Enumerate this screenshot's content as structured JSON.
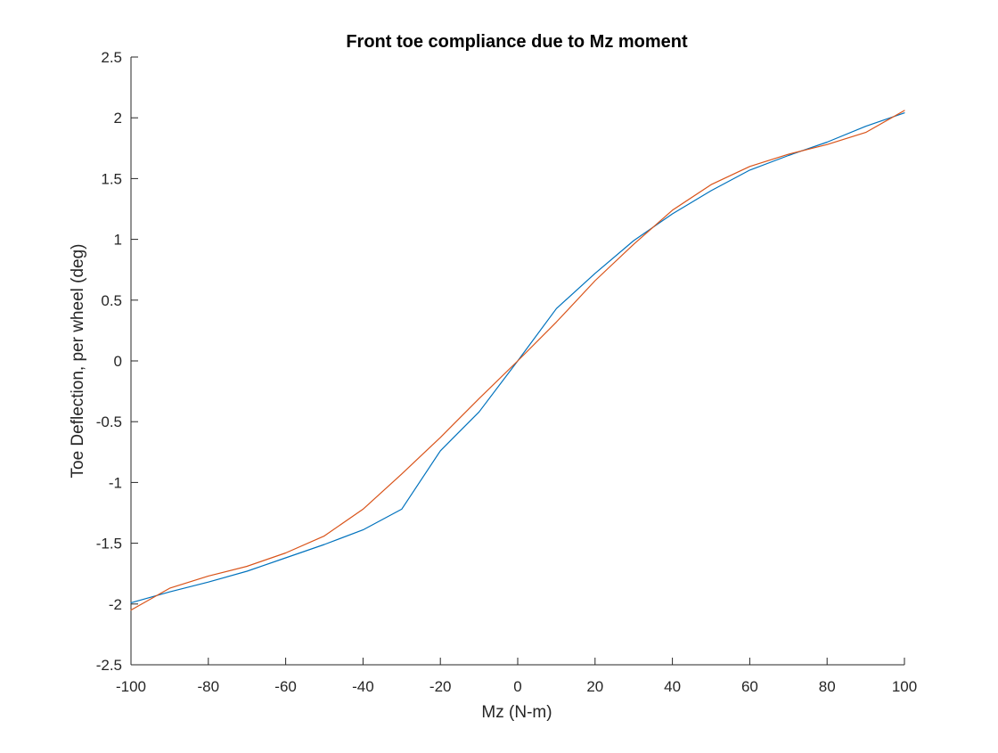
{
  "chart_data": {
    "type": "line",
    "title": "Front toe compliance due to Mz moment",
    "xlabel": "Mz (N-m)",
    "ylabel": "Toe Deflection, per wheel (deg)",
    "xlim": [
      -100,
      100
    ],
    "ylim": [
      -2.5,
      2.5
    ],
    "xticks": [
      -100,
      -80,
      -60,
      -40,
      -20,
      0,
      20,
      40,
      60,
      80,
      100
    ],
    "yticks": [
      -2.5,
      -2,
      -1.5,
      -1,
      -0.5,
      0,
      0.5,
      1,
      1.5,
      2,
      2.5
    ],
    "grid": false,
    "legend": "none",
    "series": [
      {
        "color": "#0072BD",
        "x": [
          -100,
          -90,
          -80,
          -70,
          -60,
          -50,
          -40,
          -30,
          -20,
          -10,
          0,
          10,
          20,
          30,
          40,
          50,
          60,
          70,
          80,
          90,
          100
        ],
        "y": [
          -1.99,
          -1.9,
          -1.82,
          -1.73,
          -1.62,
          -1.51,
          -1.39,
          -1.22,
          -0.74,
          -0.42,
          0.0,
          0.43,
          0.72,
          0.99,
          1.21,
          1.4,
          1.57,
          1.69,
          1.8,
          1.93,
          2.04
        ]
      },
      {
        "color": "#D95319",
        "x": [
          -100,
          -90,
          -80,
          -70,
          -60,
          -50,
          -40,
          -30,
          -20,
          -10,
          0,
          10,
          20,
          30,
          40,
          50,
          60,
          70,
          80,
          90,
          100
        ],
        "y": [
          -2.05,
          -1.87,
          -1.77,
          -1.69,
          -1.58,
          -1.44,
          -1.22,
          -0.93,
          -0.63,
          -0.31,
          0.0,
          0.32,
          0.66,
          0.96,
          1.24,
          1.45,
          1.6,
          1.7,
          1.78,
          1.88,
          2.06
        ]
      }
    ]
  }
}
